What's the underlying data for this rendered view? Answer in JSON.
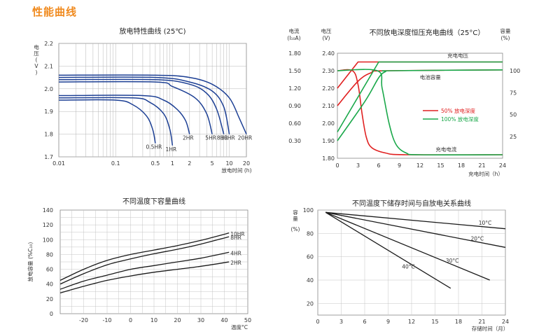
{
  "page_title": "性能曲线",
  "chart_data": [
    {
      "type": "line",
      "title": "放电特性曲线 (25℃)",
      "ylabel": "电压 (V)",
      "xlabel": "放电时间 (h)",
      "x_scale": "log",
      "xlim": [
        0.01,
        20
      ],
      "ylim": [
        1.7,
        2.2
      ],
      "x_ticks": [
        0.01,
        0.1,
        0.5,
        1,
        2,
        5,
        10,
        20
      ],
      "x_tick_labels": [
        "0.01",
        "0.1",
        "0.5",
        "1",
        "2",
        "5",
        "10",
        "20"
      ],
      "y_ticks": [
        1.7,
        1.8,
        1.9,
        2.0,
        2.1,
        2.2
      ],
      "y_tick_labels": [
        "1.7",
        "1.8",
        "1.9",
        "2.0",
        "2.1",
        "2.2"
      ],
      "grid": true,
      "series": [
        {
          "name": "20HR",
          "x": [
            0.01,
            0.5,
            2,
            5,
            10,
            15,
            20
          ],
          "y": [
            2.06,
            2.06,
            2.05,
            2.02,
            1.96,
            1.87,
            1.8
          ]
        },
        {
          "name": "10HR",
          "x": [
            0.01,
            0.5,
            2,
            5,
            8,
            10
          ],
          "y": [
            2.05,
            2.05,
            2.03,
            1.99,
            1.92,
            1.8
          ]
        },
        {
          "name": "8HR",
          "x": [
            0.01,
            0.5,
            2,
            4,
            6,
            8
          ],
          "y": [
            2.04,
            2.04,
            2.02,
            1.98,
            1.91,
            1.8
          ]
        },
        {
          "name": "5HR",
          "x": [
            0.01,
            0.5,
            1,
            2.5,
            4,
            5
          ],
          "y": [
            2.03,
            2.03,
            2.01,
            1.96,
            1.89,
            1.8
          ]
        },
        {
          "name": "2HR",
          "x": [
            0.01,
            0.3,
            0.7,
            1.2,
            1.7,
            2
          ],
          "y": [
            1.97,
            1.97,
            1.95,
            1.91,
            1.86,
            1.8
          ]
        },
        {
          "name": "1HR",
          "x": [
            0.01,
            0.2,
            0.4,
            0.7,
            0.9,
            1
          ],
          "y": [
            1.96,
            1.96,
            1.94,
            1.89,
            1.82,
            1.75
          ]
        },
        {
          "name": "0.5HR",
          "x": [
            0.01,
            0.1,
            0.2,
            0.35,
            0.45,
            0.5
          ],
          "y": [
            1.95,
            1.95,
            1.93,
            1.88,
            1.82,
            1.76
          ]
        }
      ]
    },
    {
      "type": "line",
      "title": "不同放电深度恒压充电曲线（25°C）",
      "xlabel": "充电时间（h）",
      "xlim": [
        0,
        24
      ],
      "x_ticks": [
        0,
        3,
        6,
        9,
        12,
        15,
        18,
        21,
        24
      ],
      "x_tick_labels": [
        "0",
        "3",
        "6",
        "9",
        "12",
        "15",
        "18",
        "21",
        "24"
      ],
      "left_axis_current": {
        "label": "电流 (I₁₀A)",
        "lim": [
          0,
          1.8
        ],
        "ticks": [
          "0.30",
          "0.60",
          "0.90",
          "1.20",
          "1.50",
          "1.80"
        ]
      },
      "left_axis_voltage": {
        "label": "电压 (V)",
        "lim": [
          1.8,
          2.4
        ],
        "ticks": [
          "1.80",
          "1.90",
          "2.00",
          "2.10",
          "2.20",
          "2.30",
          "2.40"
        ]
      },
      "right_axis": {
        "label": "容量 (%)",
        "lim": [
          0,
          120
        ],
        "ticks": [
          "25",
          "50",
          "75",
          "100"
        ]
      },
      "annotations": [
        "充电电压",
        "电池容量",
        "充电电流"
      ],
      "legend": [
        "50% 放电深度",
        "100% 放电深度"
      ],
      "series": [
        {
          "name": "50%",
          "color": "#e02020",
          "role": "voltage",
          "axis": "voltage",
          "x": [
            0,
            3,
            24
          ],
          "y": [
            2.2,
            2.35,
            2.35
          ]
        },
        {
          "name": "50%",
          "color": "#e02020",
          "role": "current",
          "axis": "voltage",
          "x": [
            0,
            2.2,
            3,
            3.6,
            4.2,
            5,
            7,
            10,
            24
          ],
          "y": [
            2.3,
            2.3,
            2.22,
            2.05,
            1.92,
            1.86,
            1.83,
            1.82,
            1.82
          ]
        },
        {
          "name": "50%",
          "color": "#e02020",
          "role": "capacity",
          "axis": "capacity",
          "x": [
            0,
            3,
            5,
            7,
            24
          ],
          "y": [
            60,
            88,
            98,
            100,
            101
          ]
        },
        {
          "name": "100%",
          "color": "#1aa84a",
          "role": "voltage",
          "axis": "voltage",
          "x": [
            0,
            6,
            24
          ],
          "y": [
            1.95,
            2.35,
            2.35
          ]
        },
        {
          "name": "100%",
          "color": "#1aa84a",
          "role": "current",
          "axis": "voltage",
          "x": [
            0,
            5.8,
            6.5,
            7.5,
            8.5,
            10,
            12,
            24
          ],
          "y": [
            2.3,
            2.3,
            2.2,
            2.0,
            1.88,
            1.83,
            1.82,
            1.82
          ]
        },
        {
          "name": "100%",
          "color": "#1aa84a",
          "role": "capacity",
          "axis": "capacity",
          "x": [
            0,
            4,
            6,
            7,
            8,
            24
          ],
          "y": [
            20,
            65,
            92,
            99,
            100,
            101
          ]
        }
      ]
    },
    {
      "type": "line",
      "title": "不同温度下容量曲线",
      "ylabel": "放电容量 (%C₁₀)",
      "xlabel": "温度°C",
      "xlim": [
        -30,
        50
      ],
      "ylim": [
        0,
        140
      ],
      "x_ticks": [
        -20,
        -10,
        0,
        10,
        20,
        30,
        40,
        50
      ],
      "x_tick_labels": [
        "-20",
        "-10",
        "0",
        "10",
        "20",
        "30",
        "40",
        "50"
      ],
      "y_ticks": [
        0,
        20,
        40,
        60,
        80,
        100,
        120,
        140
      ],
      "y_tick_labels": [
        "0",
        "20",
        "40",
        "60",
        "80",
        "100",
        "120",
        "140"
      ],
      "grid": true,
      "series": [
        {
          "name": "10HR",
          "x": [
            -30,
            -20,
            -10,
            0,
            10,
            20,
            30,
            42
          ],
          "y": [
            45,
            60,
            72,
            80,
            86,
            92,
            99,
            109
          ]
        },
        {
          "name": "8HR",
          "x": [
            -30,
            -20,
            -10,
            0,
            10,
            20,
            30,
            42
          ],
          "y": [
            40,
            54,
            66,
            74,
            81,
            87,
            94,
            104
          ]
        },
        {
          "name": "4HR",
          "x": [
            -30,
            -20,
            -10,
            0,
            10,
            20,
            30,
            42
          ],
          "y": [
            33,
            44,
            52,
            60,
            65,
            70,
            75,
            83
          ]
        },
        {
          "name": "2HR",
          "x": [
            -30,
            -20,
            -10,
            0,
            10,
            20,
            30,
            42
          ],
          "y": [
            28,
            37,
            45,
            51,
            56,
            60,
            64,
            70
          ]
        }
      ]
    },
    {
      "type": "line",
      "title": "不同温度下储存时间与自放电关系曲线",
      "ylabel": "容量 (%)",
      "xlabel": "存储时间（月）",
      "xlim": [
        0,
        24
      ],
      "ylim": [
        10,
        100
      ],
      "x_ticks": [
        0,
        3,
        6,
        9,
        12,
        15,
        18,
        21,
        24
      ],
      "x_tick_labels": [
        "0",
        "3",
        "6",
        "9",
        "12",
        "15",
        "18",
        "21",
        "24"
      ],
      "y_ticks": [
        20,
        40,
        60,
        80,
        100
      ],
      "y_tick_labels": [
        "20",
        "40",
        "60",
        "80",
        "100"
      ],
      "grid": true,
      "series": [
        {
          "name": "10°C",
          "x": [
            1,
            24
          ],
          "y": [
            98,
            84
          ]
        },
        {
          "name": "20°C",
          "x": [
            1,
            24
          ],
          "y": [
            98,
            68
          ]
        },
        {
          "name": "30°C",
          "x": [
            1,
            22
          ],
          "y": [
            98,
            40
          ]
        },
        {
          "name": "40°C",
          "x": [
            1,
            17
          ],
          "y": [
            98,
            33
          ]
        }
      ]
    }
  ]
}
